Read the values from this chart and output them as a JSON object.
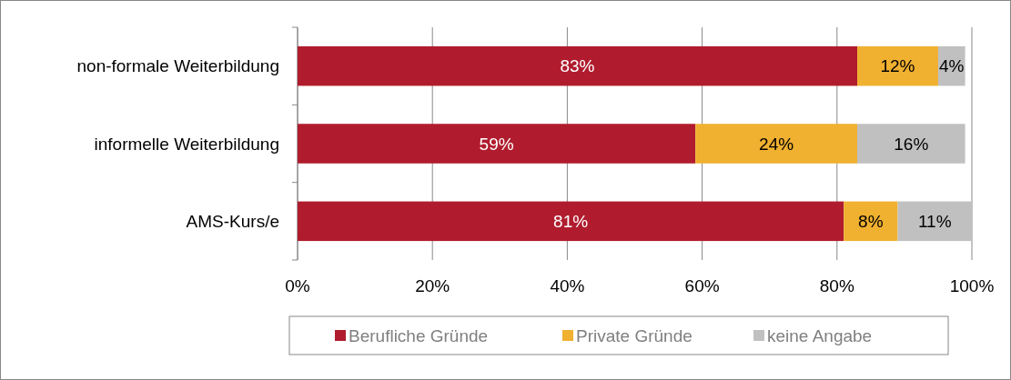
{
  "chart_data": {
    "type": "bar",
    "orientation": "horizontal",
    "stacked": true,
    "categories": [
      "non-formale Weiterbildung",
      "informelle Weiterbildung",
      "AMS-Kurs/e"
    ],
    "series": [
      {
        "name": "Berufliche Gründe",
        "color": "#b01c2e",
        "values": [
          83,
          59,
          81
        ],
        "value_labels": [
          "83%",
          "59%",
          "81%"
        ]
      },
      {
        "name": "Private Gründe",
        "color": "#f0b030",
        "values": [
          12,
          24,
          8
        ],
        "value_labels": [
          "12%",
          "24%",
          "8%"
        ]
      },
      {
        "name": "keine Angabe",
        "color": "#c0c0c0",
        "values": [
          4,
          16,
          11
        ],
        "value_labels": [
          "4%",
          "16%",
          "11%"
        ]
      }
    ],
    "xlim": [
      0,
      100
    ],
    "xticks": [
      {
        "value": 0,
        "label": "0%"
      },
      {
        "value": 20,
        "label": "20%"
      },
      {
        "value": 40,
        "label": "40%"
      },
      {
        "value": 60,
        "label": "60%"
      },
      {
        "value": 80,
        "label": "80%"
      },
      {
        "value": 100,
        "label": "100%"
      }
    ],
    "grid": "x",
    "legend": "bottom"
  }
}
